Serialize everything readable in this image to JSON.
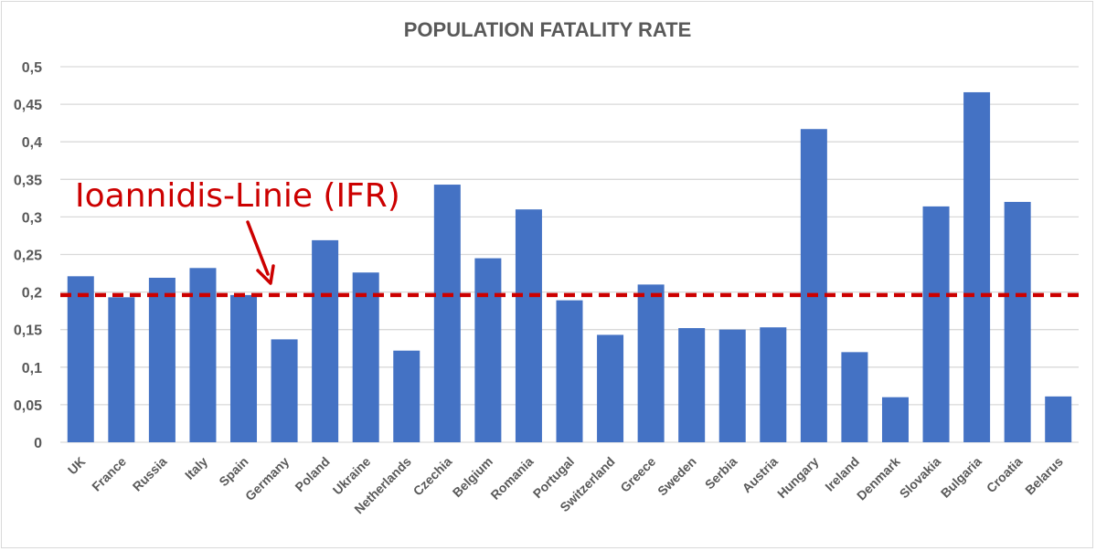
{
  "chart_data": {
    "type": "bar",
    "title": "POPULATION FATALITY RATE",
    "xlabel": "",
    "ylabel": "",
    "ylim": [
      0,
      0.5
    ],
    "yticks": [
      0,
      0.05,
      0.1,
      0.15,
      0.2,
      0.25,
      0.3,
      0.35,
      0.4,
      0.45,
      0.5
    ],
    "ytick_labels": [
      "0",
      "0,05",
      "0,1",
      "0,15",
      "0,2",
      "0,25",
      "0,3",
      "0,35",
      "0,4",
      "0,45",
      "0,5"
    ],
    "grid": true,
    "categories": [
      "UK",
      "France",
      "Russia",
      "Italy",
      "Spain",
      "Germany",
      "Poland",
      "Ukraine",
      "Netherlands",
      "Czechia",
      "Belgium",
      "Romania",
      "Portugal",
      "Switzerland",
      "Greece",
      "Sweden",
      "Serbia",
      "Austria",
      "Hungary",
      "Ireland",
      "Denmark",
      "Slovakia",
      "Bulgaria",
      "Croatia",
      "Belarus"
    ],
    "values": [
      0.221,
      0.193,
      0.219,
      0.232,
      0.196,
      0.137,
      0.269,
      0.226,
      0.122,
      0.343,
      0.245,
      0.31,
      0.189,
      0.143,
      0.21,
      0.152,
      0.15,
      0.153,
      0.417,
      0.12,
      0.06,
      0.314,
      0.466,
      0.32,
      0.061
    ],
    "bar_color": "#4472c4",
    "reference_line": {
      "value": 0.196,
      "style": "dashed",
      "color": "#cc0000",
      "label": "Ioannidis-Linie (IFR)"
    },
    "annotations": [
      {
        "text": "Ioannidis-Linie (IFR)",
        "color": "#cc0000",
        "points_to": "reference_line"
      }
    ]
  }
}
